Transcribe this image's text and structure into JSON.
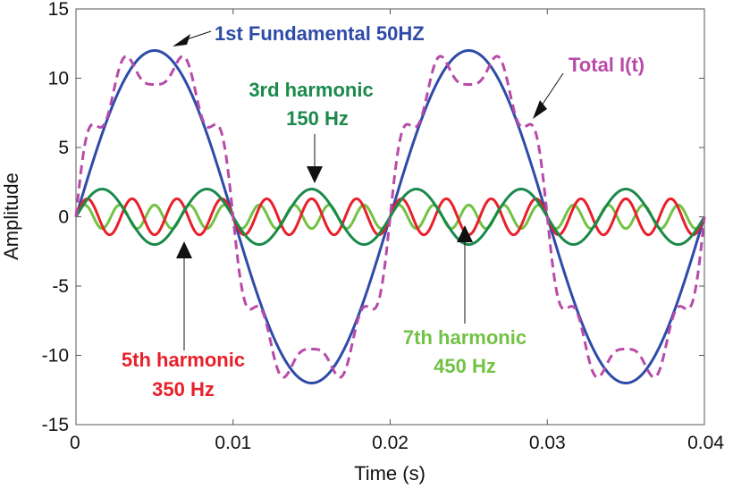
{
  "chart_data": {
    "type": "line",
    "xlabel": "Time (s)",
    "ylabel": "Amplitude",
    "xlim": [
      0,
      0.04
    ],
    "ylim": [
      -15,
      15
    ],
    "x_ticks": [
      "0",
      "0.01",
      "0.02",
      "0.03",
      "0.04"
    ],
    "y_ticks": [
      "15",
      "10",
      "5",
      "0",
      "-5",
      "-10",
      "-15"
    ],
    "grid": false,
    "colors": {
      "fundamental": "#2e4ba8",
      "third": "#1a8a4a",
      "fifth": "#e8202a",
      "seventh": "#72c244",
      "total": "#b84aa8"
    },
    "series": [
      {
        "key": "fundamental",
        "frequency_hz": 50,
        "amplitude": 12,
        "style": "solid"
      },
      {
        "key": "third",
        "frequency_hz": 150,
        "amplitude": 2,
        "style": "solid"
      },
      {
        "key": "fifth",
        "frequency_hz": 350,
        "amplitude": 1.3,
        "style": "solid"
      },
      {
        "key": "seventh",
        "frequency_hz": 450,
        "amplitude": 0.85,
        "style": "solid"
      },
      {
        "key": "total",
        "components": [
          "fundamental",
          "third",
          "fifth",
          "seventh"
        ],
        "style": "dashed"
      }
    ],
    "annotations": {
      "fundamental": "1st  Fundamental 50HZ",
      "third_line1": "3rd harmonic",
      "third_line2": "150 Hz",
      "fifth_line1": "5th harmonic",
      "fifth_line2": "350 Hz",
      "seventh_line1": "7th harmonic",
      "seventh_line2": "450 Hz",
      "total": "Total  I(t)"
    }
  }
}
